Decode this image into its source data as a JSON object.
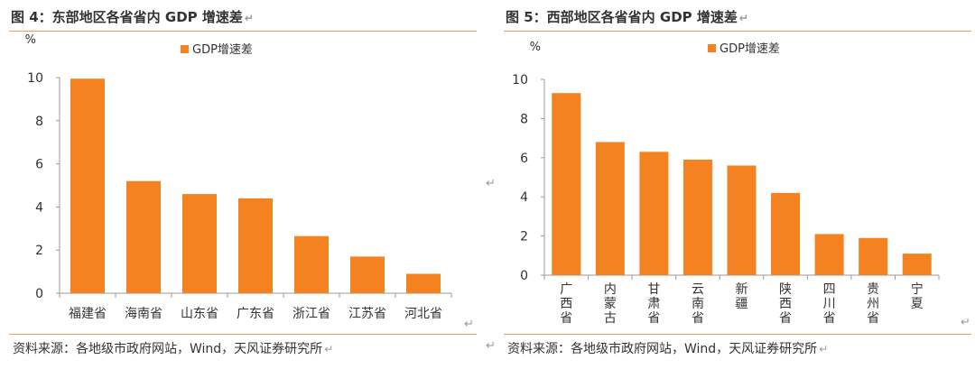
{
  "panels": [
    {
      "title": "图 4：东部地区各省省内 GDP 增速差",
      "source": "资料来源：各地级市政府网站，Wind，天风证券研究所",
      "chart_data": {
        "type": "bar",
        "ylabel": "%",
        "legend": "GDP增速差",
        "legend_position": "top-center",
        "grid": false,
        "ylim": [
          0,
          10
        ],
        "yticks": [
          0,
          2,
          4,
          6,
          8,
          10
        ],
        "categories": [
          "福建省",
          "海南省",
          "山东省",
          "广东省",
          "浙江省",
          "江苏省",
          "河北省"
        ],
        "label_mode": "horizontal",
        "values": [
          9.95,
          5.2,
          4.6,
          4.4,
          2.65,
          1.7,
          0.9
        ],
        "color": "#F58220"
      }
    },
    {
      "title": "图 5：西部地区各省省内 GDP 增速差",
      "source": "资料来源：各地级市政府网站，Wind，天风证券研究所",
      "chart_data": {
        "type": "bar",
        "ylabel": "%",
        "legend": "GDP增速差",
        "legend_position": "top-center",
        "grid": false,
        "ylim": [
          0,
          10
        ],
        "yticks": [
          0,
          2,
          4,
          6,
          8,
          10
        ],
        "categories": [
          "广西省",
          "内蒙古",
          "甘肃省",
          "云南省",
          "新疆",
          "陕西省",
          "四川省",
          "贵州省",
          "宁夏"
        ],
        "label_mode": "vertical",
        "values": [
          9.3,
          6.8,
          6.3,
          5.9,
          5.6,
          4.2,
          2.1,
          1.9,
          1.1
        ],
        "color": "#F58220"
      }
    }
  ]
}
